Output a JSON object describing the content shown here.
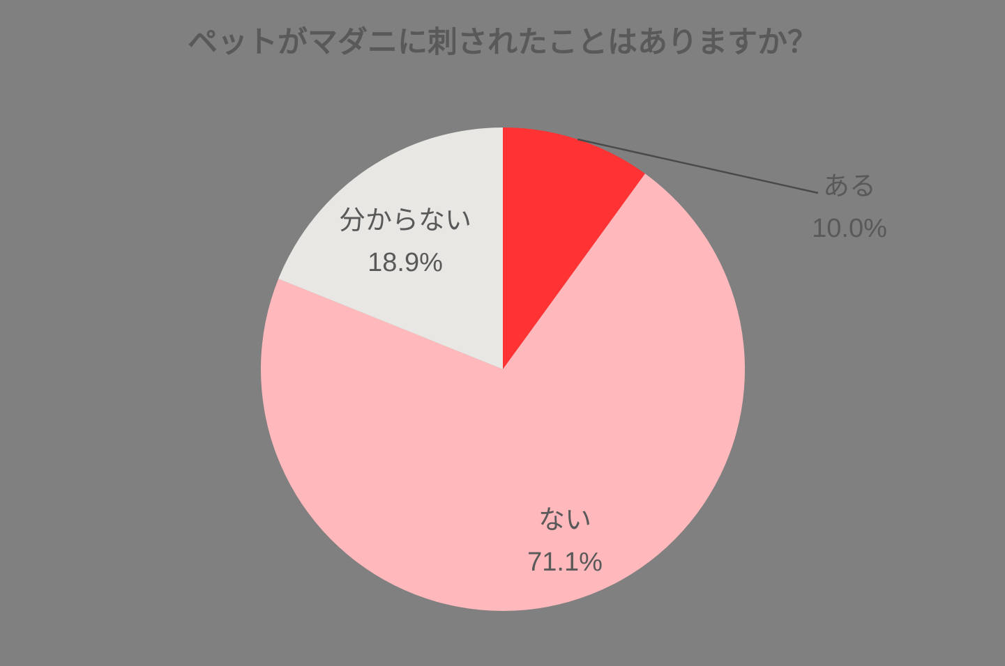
{
  "chart_data": {
    "type": "pie",
    "title": "ペットがマダニに刺されたことはありますか？",
    "start_angle_deg": 0,
    "direction": "clockwise",
    "legend": "none",
    "background_color": "#808080",
    "text_color": "#595959",
    "leader_line_color": "#4a4a4a",
    "slices": [
      {
        "label": "ある",
        "value": 10.0,
        "pct_label": "10.0%",
        "color": "#ff3333",
        "label_placement": "outside-with-leader"
      },
      {
        "label": "ない",
        "value": 71.1,
        "pct_label": "71.1%",
        "color": "#ffb9bc",
        "label_placement": "inside"
      },
      {
        "label": "分からない",
        "value": 18.9,
        "pct_label": "18.9%",
        "color": "#e8e7e3",
        "label_placement": "inside"
      }
    ]
  }
}
